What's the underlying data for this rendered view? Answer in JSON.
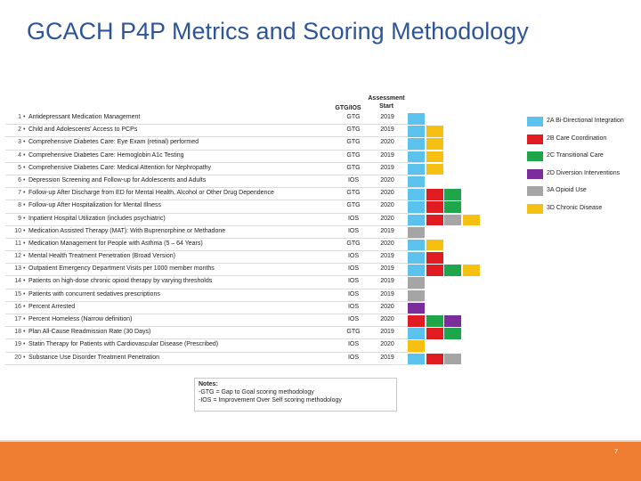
{
  "title": "GCACH P4P Metrics and Scoring Methodology",
  "headers": {
    "type": "GTG/IOS",
    "assessment": "Assessment",
    "start": "Start"
  },
  "colors": {
    "2A": "#5bc2ee",
    "2B": "#e11b22",
    "2C": "#1fa64a",
    "2D": "#7a2d9b",
    "3A": "#a5a5a5",
    "3D": "#f5c012"
  },
  "metrics": [
    {
      "num": "1",
      "name": "Antidepressant Medication Management",
      "type": "GTG",
      "year": "2019",
      "cells": [
        "2A"
      ]
    },
    {
      "num": "2",
      "name": "Child and Adolescents' Access to PCPs",
      "type": "GTG",
      "year": "2019",
      "cells": [
        "2A",
        "3D"
      ]
    },
    {
      "num": "3",
      "name": "Comprehensive Diabetes Care: Eye Exam (retinal) performed",
      "type": "GTG",
      "year": "2020",
      "cells": [
        "2A",
        "3D"
      ]
    },
    {
      "num": "4",
      "name": "Comprehensive Diabetes Care: Hemoglobin A1c Testing",
      "type": "GTG",
      "year": "2019",
      "cells": [
        "2A",
        "3D"
      ]
    },
    {
      "num": "5",
      "name": "Comprehensive Diabetes Care: Medical Attention for Nephropathy",
      "type": "GTG",
      "year": "2019",
      "cells": [
        "2A",
        "3D"
      ]
    },
    {
      "num": "6",
      "name": "Depression Screening and Follow-up for Adolescents and Adults",
      "type": "IOS",
      "year": "2020",
      "cells": [
        "2A"
      ]
    },
    {
      "num": "7",
      "name": "Follow-up After Discharge from ED for Mental Health, Alcohol or Other Drug Dependence",
      "type": "GTG",
      "year": "2020",
      "cells": [
        "2A",
        "2B",
        "2C"
      ]
    },
    {
      "num": "8",
      "name": "Follow-up After Hospitalization for Mental Illness",
      "type": "GTG",
      "year": "2020",
      "cells": [
        "2A",
        "2B",
        "2C"
      ]
    },
    {
      "num": "9",
      "name": "Inpatient Hospital Utilization (includes psychiatric)",
      "type": "IOS",
      "year": "2020",
      "cells": [
        "2A",
        "2B",
        "3A",
        "3D"
      ]
    },
    {
      "num": "10",
      "name": "Medication Assisted Therapy (MAT): With Buprenorphine or Methadone",
      "type": "IOS",
      "year": "2019",
      "cells": [
        "3A"
      ]
    },
    {
      "num": "11",
      "name": "Medication Management for People with Asthma (5 – 64 Years)",
      "type": "GTG",
      "year": "2020",
      "cells": [
        "2A",
        "3D"
      ]
    },
    {
      "num": "12",
      "name": "Mental Health Treatment Penetration (Broad Version)",
      "type": "IOS",
      "year": "2019",
      "cells": [
        "2A",
        "2B"
      ]
    },
    {
      "num": "13",
      "name": "Outpatient Emergency Department Visits per 1000 member months",
      "type": "IOS",
      "year": "2019",
      "cells": [
        "2A",
        "2B",
        "2C",
        "3D"
      ]
    },
    {
      "num": "14",
      "name": "Patients on high-dose chronic opioid therapy by varying thresholds",
      "type": "IOS",
      "year": "2019",
      "cells": [
        "3A"
      ]
    },
    {
      "num": "15",
      "name": "Patients with concurrent sedatives prescriptions",
      "type": "IOS",
      "year": "2019",
      "cells": [
        "3A"
      ]
    },
    {
      "num": "16",
      "name": "Percent Arrested",
      "type": "IOS",
      "year": "2020",
      "cells": [
        "2D"
      ]
    },
    {
      "num": "17",
      "name": "Percent Homeless (Narrow definition)",
      "type": "IOS",
      "year": "2020",
      "cells": [
        "2B",
        "2C",
        "2D"
      ]
    },
    {
      "num": "18",
      "name": "Plan All-Cause Readmission Rate (30 Days)",
      "type": "GTG",
      "year": "2019",
      "cells": [
        "2A",
        "2B",
        "2C"
      ]
    },
    {
      "num": "19",
      "name": "Statin Therapy for Patients with Cardiovascular Disease (Prescribed)",
      "type": "IOS",
      "year": "2020",
      "cells": [
        "3D"
      ]
    },
    {
      "num": "20",
      "name": "Substance Use Disorder Treatment Penetration",
      "type": "IOS",
      "year": "2019",
      "cells": [
        "2A",
        "2B",
        "3A"
      ]
    }
  ],
  "legend": [
    {
      "key": "2A",
      "label": "2A Bi-Directional Integration"
    },
    {
      "key": "2B",
      "label": "2B Care Coordination"
    },
    {
      "key": "2C",
      "label": "2C Transitional Care"
    },
    {
      "key": "2D",
      "label": "2D Diversion Interventions"
    },
    {
      "key": "3A",
      "label": "3A Opioid Use"
    },
    {
      "key": "3D",
      "label": "3D Chronic Disease"
    }
  ],
  "notes": {
    "title": "Notes:",
    "line1": "-GTG = Gap to Goal scoring methodology",
    "line2": "-IOS = Improvement Over Self scoring methodology"
  },
  "page_number": "7"
}
